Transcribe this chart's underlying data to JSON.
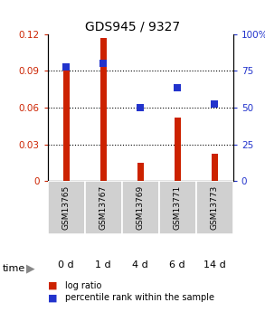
{
  "title": "GDS945 / 9327",
  "categories": [
    "GSM13765",
    "GSM13767",
    "GSM13769",
    "GSM13771",
    "GSM13773"
  ],
  "time_labels": [
    "0 d",
    "1 d",
    "4 d",
    "6 d",
    "14 d"
  ],
  "log_ratio": [
    0.09,
    0.117,
    0.015,
    0.052,
    0.022
  ],
  "percentile_rank": [
    0.78,
    0.8,
    0.5,
    0.635,
    0.525
  ],
  "bar_color": "#cc2200",
  "dot_color": "#2233cc",
  "ylim_left": [
    0,
    0.12
  ],
  "ylim_right": [
    0,
    1.0
  ],
  "yticks_left": [
    0,
    0.03,
    0.06,
    0.09,
    0.12
  ],
  "ytick_labels_left": [
    "0",
    "0.03",
    "0.06",
    "0.09",
    "0.12"
  ],
  "yticks_right": [
    0,
    0.25,
    0.5,
    0.75,
    1.0
  ],
  "ytick_labels_right": [
    "0",
    "25",
    "50",
    "75",
    "100%"
  ],
  "bar_width": 0.18,
  "dot_size": 30,
  "sample_bg_color": "#d0d0d0",
  "time_bg_colors": [
    "#ccffcc",
    "#ccffcc",
    "#ccffcc",
    "#99ee99",
    "#88dd88"
  ],
  "legend_log_ratio": "log ratio",
  "legend_percentile": "percentile rank within the sample"
}
